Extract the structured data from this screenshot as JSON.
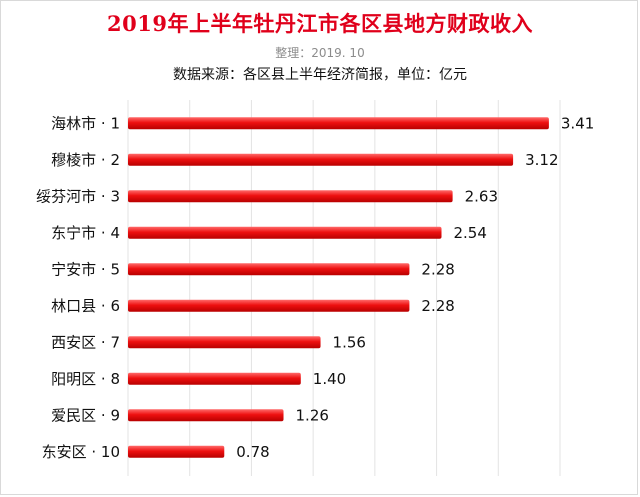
{
  "chart_data": {
    "type": "bar",
    "orientation": "horizontal",
    "title": "2019年上半年牡丹江市各区县地方财政收入",
    "subtitle": "整理：2019. 10",
    "source_note": "数据来源：各区县上半年经济简报，单位：亿元",
    "categories": [
      "海林市 · 1",
      "穆棱市 · 2",
      "绥芬河市 · 3",
      "东宁市 · 4",
      "宁安市 · 5",
      "林口县 · 6",
      "西安区 · 7",
      "阳明区 · 8",
      "爱民区 · 9",
      "东安区 · 10"
    ],
    "values": [
      3.41,
      3.12,
      2.63,
      2.54,
      2.28,
      2.28,
      1.56,
      1.4,
      1.26,
      0.78
    ],
    "value_labels": [
      "3.41",
      "3.12",
      "2.63",
      "2.54",
      "2.28",
      "2.28",
      "1.56",
      "1.40",
      "1.26",
      "0.78"
    ],
    "xlim": [
      0,
      3.5
    ],
    "grid": true,
    "bar_color": "#e0001b",
    "title_color": "#e0001b"
  }
}
